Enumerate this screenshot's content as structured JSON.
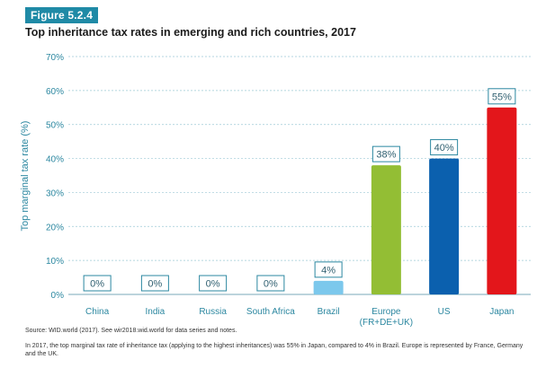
{
  "header": {
    "figure_label": "Figure 5.2.4",
    "title": "Top inheritance tax rates in emerging and rich countries, 2017"
  },
  "footer": {
    "source": "Source: WID.world (2017). See wir2018.wid.world for data series and notes.",
    "note": "In 2017, the top marginal tax rate of inheritance tax (applying to the highest inheritances) was 55% in Japan, compared to 4% in Brazil. Europe is represented by France, Germany and the UK."
  },
  "chart_data": {
    "type": "bar",
    "ylabel": "Top marginal tax rate (%)",
    "ylim": [
      0,
      70
    ],
    "yticks": [
      0,
      10,
      20,
      30,
      40,
      50,
      60,
      70
    ],
    "ytick_labels": [
      "0%",
      "10%",
      "20%",
      "30%",
      "40%",
      "50%",
      "60%",
      "70%"
    ],
    "grid": "horizontal-dashed",
    "categories": [
      {
        "label": [
          "China"
        ],
        "value": 0,
        "data_label": "0%",
        "color": "#f4a24a"
      },
      {
        "label": [
          "India"
        ],
        "value": 0,
        "data_label": "0%",
        "color": "#f4a24a"
      },
      {
        "label": [
          "Russia"
        ],
        "value": 0,
        "data_label": "0%",
        "color": "#f4a24a"
      },
      {
        "label": [
          "South Africa"
        ],
        "value": 0,
        "data_label": "0%",
        "color": "#f4a24a"
      },
      {
        "label": [
          "Brazil"
        ],
        "value": 4,
        "data_label": "4%",
        "color": "#7cc8ec"
      },
      {
        "label": [
          "Europe",
          "(FR+DE+UK)"
        ],
        "value": 38,
        "data_label": "38%",
        "color": "#93be34"
      },
      {
        "label": [
          "US"
        ],
        "value": 40,
        "data_label": "40%",
        "color": "#0b60ae"
      },
      {
        "label": [
          "Japan"
        ],
        "value": 55,
        "data_label": "55%",
        "color": "#e3161b"
      }
    ],
    "colors": {
      "axis_text": "#2b87a0",
      "label_box": "#2b87a0",
      "grid": "#9ec9d6"
    }
  }
}
